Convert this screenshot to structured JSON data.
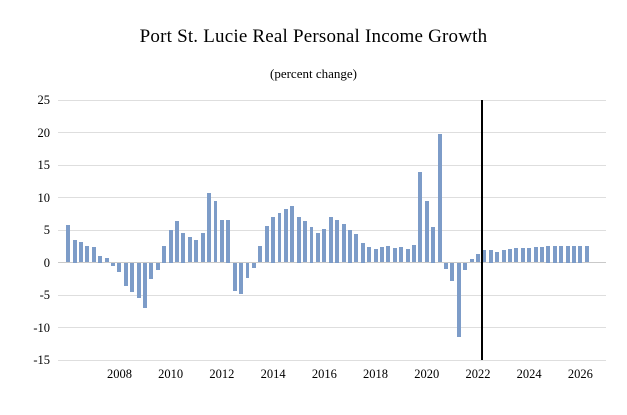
{
  "chart_data": {
    "type": "bar",
    "title": "Port St. Lucie Real Personal Income Growth",
    "subtitle": "(percent change)",
    "xlabel": "",
    "ylabel": "",
    "ylim": [
      -15,
      25
    ],
    "yticks": [
      25,
      20,
      15,
      10,
      5,
      0,
      -5,
      -10,
      -15
    ],
    "xticks": [
      2008,
      2010,
      2012,
      2014,
      2016,
      2018,
      2020,
      2022,
      2024,
      2026
    ],
    "xlim": [
      2005.6,
      2027.0
    ],
    "x_start": 2006.0,
    "x_step": 0.25,
    "frequency": "quarterly",
    "grid": "horizontal-light",
    "legend": "none",
    "bar_color": "#7d9cc8",
    "divider_color": "#000000",
    "forecast_divider_x": 2022.15,
    "values": [
      5.7,
      3.5,
      3.1,
      2.6,
      2.4,
      1.0,
      0.7,
      -0.6,
      -1.5,
      -3.6,
      -4.6,
      -5.4,
      -7.0,
      -2.6,
      -1.1,
      2.5,
      5.0,
      6.4,
      4.5,
      3.9,
      3.4,
      4.6,
      10.7,
      9.4,
      6.6,
      6.5,
      -4.4,
      -4.9,
      -2.4,
      -0.9,
      2.6,
      5.6,
      7.0,
      7.6,
      8.2,
      8.7,
      7.0,
      6.4,
      5.5,
      4.6,
      5.1,
      7.0,
      6.5,
      5.9,
      5.0,
      4.4,
      3.0,
      2.4,
      2.1,
      2.4,
      2.6,
      2.2,
      2.4,
      2.1,
      2.7,
      13.9,
      9.4,
      5.5,
      19.8,
      -1.0,
      -2.9,
      -11.4,
      -1.2,
      0.6,
      1.3,
      1.9,
      2.0,
      1.6,
      1.9,
      2.1,
      2.2,
      2.3,
      2.3,
      2.4,
      2.4,
      2.5,
      2.5,
      2.5,
      2.5,
      2.5,
      2.5,
      2.6
    ]
  }
}
